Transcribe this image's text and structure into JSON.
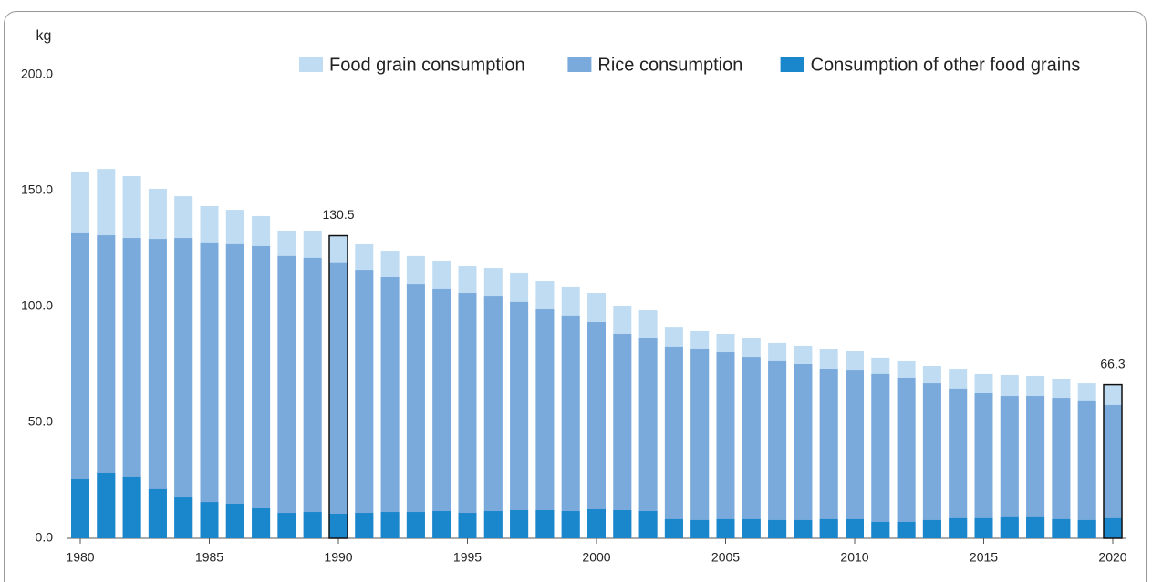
{
  "chart_data": {
    "type": "bar",
    "mode": "overlap",
    "y_unit": "kg",
    "categories": [
      "1980",
      null,
      null,
      null,
      null,
      "1985",
      null,
      null,
      null,
      null,
      "1990",
      null,
      null,
      null,
      null,
      "1995",
      null,
      null,
      null,
      null,
      "2000",
      null,
      null,
      null,
      null,
      "2005",
      null,
      null,
      null,
      null,
      "2010",
      null,
      null,
      null,
      null,
      "2015",
      null,
      null,
      null,
      null,
      "2020"
    ],
    "series": [
      {
        "name": "Food grain consumption",
        "color": "#bfdcf3",
        "values": [
          157.9,
          159.4,
          156.3,
          150.8,
          147.6,
          143.3,
          141.7,
          139.0,
          132.7,
          132.7,
          130.5,
          127.2,
          124.0,
          121.7,
          119.7,
          117.3,
          116.5,
          114.6,
          111.0,
          108.3,
          105.9,
          100.4,
          98.4,
          90.9,
          89.4,
          88.2,
          86.6,
          84.3,
          83.1,
          81.5,
          80.7,
          78.0,
          76.4,
          74.4,
          72.8,
          70.9,
          70.5,
          70.1,
          68.5,
          66.9,
          66.3
        ],
        "value_labels": [
          null,
          null,
          null,
          null,
          null,
          null,
          null,
          null,
          null,
          null,
          "130.5",
          null,
          null,
          null,
          null,
          null,
          null,
          null,
          null,
          null,
          null,
          null,
          null,
          null,
          null,
          null,
          null,
          null,
          null,
          null,
          null,
          null,
          null,
          null,
          null,
          null,
          null,
          null,
          null,
          null,
          "66.3"
        ]
      },
      {
        "name": "Rice consumption",
        "color": "#7aaadb",
        "values": [
          131.9,
          130.7,
          129.5,
          129.1,
          129.5,
          127.6,
          127.2,
          126.0,
          121.7,
          120.9,
          119.0,
          115.7,
          112.6,
          109.8,
          107.5,
          105.9,
          104.3,
          102.0,
          98.8,
          96.1,
          93.3,
          88.2,
          86.6,
          82.7,
          81.5,
          80.3,
          78.3,
          76.4,
          75.2,
          73.2,
          72.4,
          70.9,
          69.3,
          66.9,
          64.6,
          62.6,
          61.4,
          61.4,
          60.6,
          59.1,
          57.5
        ]
      },
      {
        "name": "Consumption of other food grains",
        "color": "#1a86cc",
        "values": [
          25.6,
          28.0,
          26.4,
          21.3,
          17.7,
          15.7,
          14.6,
          13.0,
          11.0,
          11.4,
          10.6,
          11.0,
          11.4,
          11.4,
          11.8,
          11.0,
          11.8,
          12.2,
          12.2,
          11.8,
          12.6,
          12.2,
          11.8,
          8.3,
          7.9,
          8.3,
          8.3,
          7.9,
          7.9,
          8.3,
          8.3,
          7.1,
          7.1,
          7.9,
          8.7,
          8.7,
          9.1,
          9.1,
          8.3,
          7.9,
          8.7
        ]
      }
    ],
    "ylim": [
      0,
      200
    ],
    "yticks": [
      {
        "value": 0,
        "label": "0.0"
      },
      {
        "value": 50,
        "label": "50.0"
      },
      {
        "value": 100,
        "label": "100.0"
      },
      {
        "value": 150,
        "label": "150.0"
      },
      {
        "value": 200,
        "label": "200.0"
      }
    ],
    "legend": "top-right",
    "grid": false
  }
}
